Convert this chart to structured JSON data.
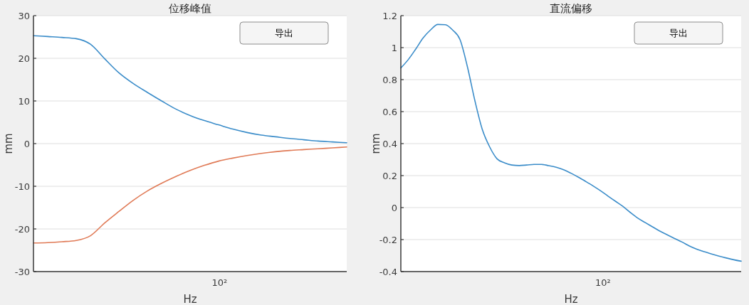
{
  "chart_data": [
    {
      "type": "line",
      "title": "位移峰值",
      "xlabel": "Hz",
      "ylabel": "mm",
      "categories": [
        null,
        null,
        null,
        null,
        null,
        null,
        null,
        null,
        null,
        null,
        null,
        null,
        null,
        null,
        null,
        null,
        null,
        null,
        null,
        null,
        null,
        null,
        null
      ],
      "ylim": [
        -30,
        30
      ],
      "yticks": [
        -30,
        -20,
        -10,
        0,
        10,
        20,
        30
      ],
      "grid": "y",
      "annotations": [
        "导出",
        "10²"
      ],
      "series": [
        {
          "color": "#3a8cc9",
          "values": [
            25.3,
            25.1,
            24.9,
            24.6,
            23.3,
            19.9,
            16.6,
            14.1,
            12.0,
            10.0,
            8.1,
            6.6,
            5.4,
            4.4,
            3.4,
            2.6,
            2.0,
            1.6,
            1.2,
            0.9,
            0.6,
            0.4,
            0.2
          ]
        },
        {
          "color": "#e07a56",
          "values": [
            -23.3,
            -23.2,
            -23.0,
            -22.7,
            -21.6,
            -18.6,
            -15.9,
            -13.3,
            -11.1,
            -9.3,
            -7.7,
            -6.3,
            -5.1,
            -4.1,
            -3.4,
            -2.8,
            -2.3,
            -1.9,
            -1.6,
            -1.4,
            -1.2,
            -1.0,
            -0.8
          ]
        }
      ]
    },
    {
      "type": "line",
      "title": "直流偏移",
      "xlabel": "Hz",
      "ylabel": "mm",
      "categories": [
        null,
        null,
        null,
        null,
        null,
        null,
        null,
        null,
        null,
        null,
        null,
        null,
        null,
        null,
        null,
        null,
        null,
        null,
        null,
        null,
        null,
        null,
        null,
        null,
        null,
        null,
        null,
        null,
        null,
        null,
        null,
        null,
        null,
        null,
        null,
        null,
        null,
        null,
        null,
        null,
        null,
        null,
        null,
        null,
        null,
        null,
        null
      ],
      "ylim": [
        -0.4,
        1.2
      ],
      "yticks": [
        -0.4,
        -0.2,
        0,
        0.2,
        0.4,
        0.6,
        0.8,
        1,
        1.2
      ],
      "grid": "y",
      "annotations": [
        "导出",
        "10²"
      ],
      "series": [
        {
          "color": "#3a8cc9",
          "values": [
            0.873,
            0.925,
            0.99,
            1.06,
            1.11,
            1.145,
            1.143,
            1.11,
            1.05,
            0.88,
            0.67,
            0.49,
            0.38,
            0.305,
            0.28,
            0.266,
            0.263,
            0.266,
            0.27,
            0.27,
            0.262,
            0.252,
            0.237,
            0.215,
            0.19,
            0.163,
            0.135,
            0.105,
            0.072,
            0.04,
            0.008,
            -0.03,
            -0.065,
            -0.093,
            -0.12,
            -0.147,
            -0.17,
            -0.193,
            -0.215,
            -0.24,
            -0.26,
            -0.276,
            -0.29,
            -0.303,
            -0.315,
            -0.326,
            -0.335
          ]
        }
      ]
    }
  ]
}
